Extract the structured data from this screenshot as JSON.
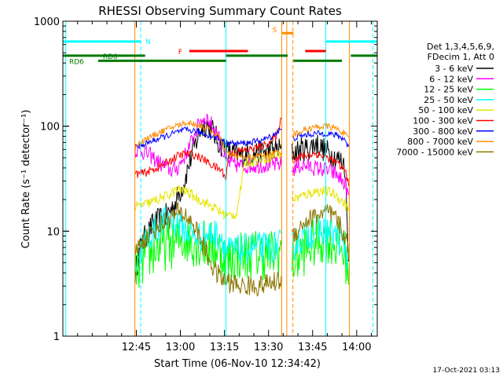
{
  "chart_data": {
    "type": "line",
    "title": "RHESSI Observing Summary Count Rates",
    "xlabel": "Start Time (06-Nov-10 12:34:42)",
    "ylabel": "Count Rate (s⁻¹ detector⁻¹)",
    "yscale": "log",
    "ylim": [
      1,
      1000
    ],
    "xlim_minutes": [
      -45,
      62
    ],
    "x_ticks": [
      {
        "m": -20,
        "label": "12:45"
      },
      {
        "m": -5,
        "label": "13:00"
      },
      {
        "m": 10,
        "label": "13:15"
      },
      {
        "m": 25,
        "label": "13:30"
      },
      {
        "m": 40,
        "label": "13:45"
      },
      {
        "m": 55,
        "label": "14:00"
      }
    ],
    "y_ticks": [
      {
        "v": 1,
        "label": "1"
      },
      {
        "v": 10,
        "label": "10"
      },
      {
        "v": 100,
        "label": "100"
      },
      {
        "v": 1000,
        "label": "1000"
      }
    ],
    "legend_header": [
      "Det 1,3,4,5,6,9,",
      "FDecim 1, Att 0"
    ],
    "legend_position": "right",
    "footer_date": "17-Oct-2021 03:13",
    "series": [
      {
        "name": "3 - 6 keV",
        "color": "#000000",
        "noise": 0.12,
        "points": [
          [
            -20.5,
            4.0
          ],
          [
            -18,
            8
          ],
          [
            -14,
            12
          ],
          [
            -10,
            14
          ],
          [
            -7,
            18
          ],
          [
            -4,
            28
          ],
          [
            -1,
            55
          ],
          [
            2,
            95
          ],
          [
            4,
            105
          ],
          [
            6,
            90
          ],
          [
            8,
            70
          ],
          [
            11,
            58
          ],
          [
            15,
            52
          ],
          [
            20,
            55
          ],
          [
            25,
            58
          ],
          [
            28,
            60
          ],
          [
            29.5,
            60
          ],
          [
            null,
            null
          ],
          [
            33,
            55
          ],
          [
            36,
            60
          ],
          [
            39,
            62
          ],
          [
            41,
            70
          ],
          [
            43,
            62
          ],
          [
            46,
            55
          ],
          [
            49,
            48
          ],
          [
            51,
            44
          ],
          [
            52.5,
            3.5
          ]
        ]
      },
      {
        "name": "6 - 12 keV",
        "color": "#ff00ff",
        "noise": 0.08,
        "points": [
          [
            -20.5,
            60
          ],
          [
            -18,
            58
          ],
          [
            -15,
            52
          ],
          [
            -11,
            42
          ],
          [
            -8,
            38
          ],
          [
            -6,
            40
          ],
          [
            -3,
            55
          ],
          [
            0,
            85
          ],
          [
            2,
            115
          ],
          [
            4,
            120
          ],
          [
            6,
            100
          ],
          [
            8,
            80
          ],
          [
            9.5,
            55
          ],
          [
            11,
            45
          ],
          [
            15,
            42
          ],
          [
            20,
            42
          ],
          [
            25,
            43
          ],
          [
            28,
            43
          ],
          [
            29.5,
            44
          ],
          [
            null,
            null
          ],
          [
            33,
            38
          ],
          [
            35,
            42
          ],
          [
            38,
            42
          ],
          [
            41,
            40
          ],
          [
            45,
            38
          ],
          [
            48,
            35
          ],
          [
            51,
            28
          ],
          [
            52.5,
            20
          ]
        ]
      },
      {
        "name": "12 - 25 keV",
        "color": "#00ff00",
        "noise": 0.25,
        "points": [
          [
            -20.5,
            4
          ],
          [
            -17,
            5.5
          ],
          [
            -13,
            7
          ],
          [
            -9,
            7.5
          ],
          [
            -6,
            8
          ],
          [
            -3,
            8.5
          ],
          [
            0,
            8
          ],
          [
            3,
            7.5
          ],
          [
            6,
            7
          ],
          [
            9,
            6.5
          ],
          [
            10.5,
            5
          ],
          [
            14,
            6
          ],
          [
            20,
            6
          ],
          [
            26,
            6
          ],
          [
            29.5,
            6.5
          ],
          [
            null,
            null
          ],
          [
            33,
            5
          ],
          [
            37,
            6.5
          ],
          [
            41,
            8
          ],
          [
            45,
            8.5
          ],
          [
            48,
            7.5
          ],
          [
            51,
            6
          ],
          [
            52.5,
            4
          ]
        ]
      },
      {
        "name": "25 - 50 keV",
        "color": "#00ffff",
        "noise": 0.15,
        "points": [
          [
            -20.5,
            5
          ],
          [
            -17,
            8
          ],
          [
            -13,
            11
          ],
          [
            -9,
            13
          ],
          [
            -6,
            12
          ],
          [
            -3,
            10
          ],
          [
            0,
            9
          ],
          [
            3,
            9
          ],
          [
            6,
            9.5
          ],
          [
            9,
            9
          ],
          [
            10.5,
            6.5
          ],
          [
            14,
            6.5
          ],
          [
            20,
            7
          ],
          [
            26,
            7
          ],
          [
            29.5,
            7.5
          ],
          [
            null,
            null
          ],
          [
            33,
            7
          ],
          [
            37,
            9
          ],
          [
            41,
            10
          ],
          [
            45,
            10
          ],
          [
            48,
            9
          ],
          [
            51,
            7
          ],
          [
            52.5,
            5
          ]
        ]
      },
      {
        "name": "50 - 100 keV",
        "color": "#e6e600",
        "noise": 0.05,
        "points": [
          [
            -20.5,
            17
          ],
          [
            -17,
            18
          ],
          [
            -13,
            20
          ],
          [
            -9,
            22
          ],
          [
            -6,
            25
          ],
          [
            -3,
            24
          ],
          [
            0,
            21
          ],
          [
            3,
            19
          ],
          [
            6,
            17
          ],
          [
            9,
            15
          ],
          [
            11,
            14
          ],
          [
            14,
            14.5
          ],
          [
            17,
            45
          ],
          [
            22,
            48
          ],
          [
            27,
            52
          ],
          [
            29.5,
            55
          ],
          [
            null,
            null
          ],
          [
            33,
            20
          ],
          [
            37,
            22
          ],
          [
            41,
            24
          ],
          [
            45,
            24
          ],
          [
            48,
            22
          ],
          [
            51,
            18
          ],
          [
            52.5,
            16
          ]
        ]
      },
      {
        "name": "100 - 300 keV",
        "color": "#ff0000",
        "noise": 0.04,
        "points": [
          [
            -20.5,
            35
          ],
          [
            -17,
            36
          ],
          [
            -13,
            40
          ],
          [
            -9,
            46
          ],
          [
            -6,
            52
          ],
          [
            -3,
            55
          ],
          [
            0,
            53
          ],
          [
            3,
            48
          ],
          [
            6,
            42
          ],
          [
            9,
            38
          ],
          [
            10.5,
            32
          ],
          [
            11.5,
            55
          ],
          [
            15,
            58
          ],
          [
            19,
            60
          ],
          [
            23,
            65
          ],
          [
            26,
            72
          ],
          [
            28,
            85
          ],
          [
            29.5,
            130
          ],
          [
            null,
            null
          ],
          [
            33,
            48
          ],
          [
            37,
            52
          ],
          [
            41,
            55
          ],
          [
            45,
            50
          ],
          [
            48,
            45
          ],
          [
            51,
            38
          ],
          [
            52.5,
            28
          ]
        ]
      },
      {
        "name": "300 - 800 keV",
        "color": "#0000ff",
        "noise": 0.03,
        "points": [
          [
            -20.5,
            62
          ],
          [
            -17,
            68
          ],
          [
            -13,
            75
          ],
          [
            -9,
            82
          ],
          [
            -6,
            88
          ],
          [
            -3,
            92
          ],
          [
            0,
            90
          ],
          [
            3,
            85
          ],
          [
            6,
            80
          ],
          [
            9,
            75
          ],
          [
            10.5,
            70
          ],
          [
            14,
            68
          ],
          [
            19,
            70
          ],
          [
            23,
            74
          ],
          [
            26,
            80
          ],
          [
            28,
            88
          ],
          [
            29.5,
            95
          ],
          [
            null,
            null
          ],
          [
            33,
            76
          ],
          [
            37,
            82
          ],
          [
            41,
            85
          ],
          [
            45,
            85
          ],
          [
            48,
            82
          ],
          [
            51,
            75
          ],
          [
            52.5,
            60
          ]
        ]
      },
      {
        "name": "800 - 7000 keV",
        "color": "#ff8c00",
        "noise": 0.03,
        "points": [
          [
            -20.5,
            65
          ],
          [
            -17,
            75
          ],
          [
            -13,
            85
          ],
          [
            -9,
            95
          ],
          [
            -6,
            102
          ],
          [
            -3,
            108
          ],
          [
            0,
            105
          ],
          [
            3,
            98
          ],
          [
            6,
            88
          ],
          [
            9,
            75
          ],
          [
            10.5,
            55
          ],
          [
            13,
            52
          ],
          [
            17,
            50
          ],
          [
            21,
            52
          ],
          [
            25,
            54
          ],
          [
            28,
            56
          ],
          [
            29.5,
            58
          ],
          [
            null,
            null
          ],
          [
            33,
            82
          ],
          [
            37,
            92
          ],
          [
            41,
            98
          ],
          [
            45,
            100
          ],
          [
            48,
            95
          ],
          [
            51,
            85
          ],
          [
            52.5,
            72
          ]
        ]
      },
      {
        "name": "7000 - 15000 keV",
        "color": "#8b7500",
        "noise": 0.1,
        "points": [
          [
            -20.5,
            6.5
          ],
          [
            -17,
            8.5
          ],
          [
            -13,
            11
          ],
          [
            -9,
            13
          ],
          [
            -6,
            15
          ],
          [
            -3,
            14
          ],
          [
            0,
            11
          ],
          [
            3,
            7
          ],
          [
            6,
            4.5
          ],
          [
            9,
            3.5
          ],
          [
            12,
            3.2
          ],
          [
            16,
            3
          ],
          [
            21,
            3
          ],
          [
            26,
            3.2
          ],
          [
            29.5,
            3.5
          ],
          [
            null,
            null
          ],
          [
            33,
            9
          ],
          [
            37,
            12
          ],
          [
            41,
            14
          ],
          [
            45,
            15
          ],
          [
            48,
            13
          ],
          [
            51,
            9
          ],
          [
            52.5,
            6
          ]
        ]
      }
    ],
    "state_bars": [
      {
        "name": "N",
        "label": "N",
        "color": "#00ffff",
        "y_value": 640,
        "segments": [
          [
            -45,
            -18.5
          ],
          [
            44.5,
            62
          ]
        ]
      },
      {
        "name": "F",
        "label": "F",
        "color": "#ff0000",
        "y_value": 520,
        "segments": [
          [
            -2,
            18
          ],
          [
            37.5,
            44.5
          ]
        ]
      },
      {
        "name": "S",
        "label": "S",
        "color": "#ff8c00",
        "y_value": 770,
        "segments": [
          [
            29.5,
            33.5
          ]
        ]
      },
      {
        "name": "RD0",
        "label": "RD0",
        "color": "#007a00",
        "y_value": 470,
        "segments": [
          [
            -45,
            -17
          ],
          [
            10.5,
            31.5
          ],
          [
            53,
            62
          ]
        ]
      },
      {
        "name": "RD6",
        "label": "RD6",
        "color": "#007a00",
        "y_value": 420,
        "segments": [
          [
            -33,
            10.5
          ],
          [
            33.5,
            50
          ]
        ]
      }
    ],
    "vlines": [
      {
        "m": -44,
        "color": "#00ffff",
        "dashed": false
      },
      {
        "m": -18.5,
        "color": "#00ffff",
        "dashed": true
      },
      {
        "m": 10.5,
        "color": "#00ffff",
        "dashed": false
      },
      {
        "m": 44.5,
        "color": "#00ffff",
        "dashed": false
      },
      {
        "m": 60.5,
        "color": "#00ffff",
        "dashed": true
      },
      {
        "m": 29.5,
        "color": "#ff8c00",
        "dashed": false
      },
      {
        "m": 31.2,
        "color": "#ff8c00",
        "dashed": false
      },
      {
        "m": 33.3,
        "color": "#ff8c00",
        "dashed": true
      },
      {
        "m": -20.5,
        "color": "#ff8c00",
        "dashed": false
      },
      {
        "m": 52.5,
        "color": "#ff8c00",
        "dashed": false
      }
    ]
  }
}
